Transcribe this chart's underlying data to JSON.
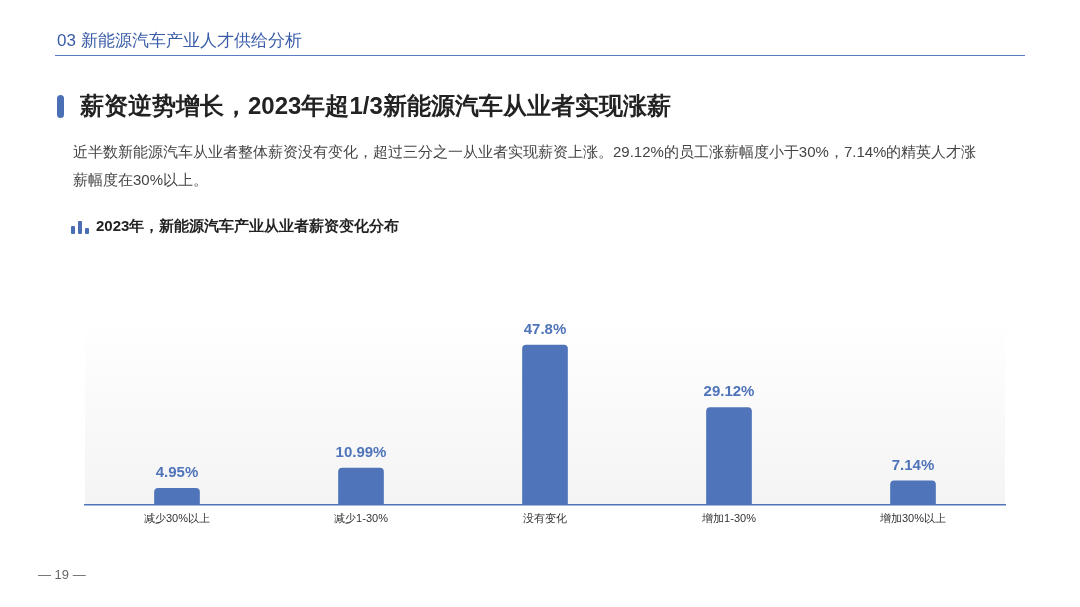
{
  "chart_data": {
    "type": "bar",
    "title": "薪资逆势增长，2023年超1/3新能源汽车从业者实现涨薪",
    "subtitle": "近半数新能源汽车从业者整体薪资没有变化，超过三分之一从业者实现薪资上涨。29.12%的员工涨薪幅度小于30%，7.14%的精英人才涨薪幅度在30%以上。",
    "annotations": [
      "03 新能源汽车产业人才供给分析",
      "2023年，新能源汽车产业从业者薪资变化分布",
      "— 19 —"
    ],
    "categories": [
      "减少30%以上",
      "减少1-30%",
      "没有变化",
      "增加1-30%",
      "增加30%以上"
    ],
    "values": [
      4.95,
      10.99,
      47.8,
      29.12,
      7.14
    ],
    "value_labels": [
      "4.95%",
      "10.99%",
      "47.8%",
      "29.12%",
      "7.14%"
    ],
    "color": "#4f74b9",
    "tick_labels": "x"
  }
}
